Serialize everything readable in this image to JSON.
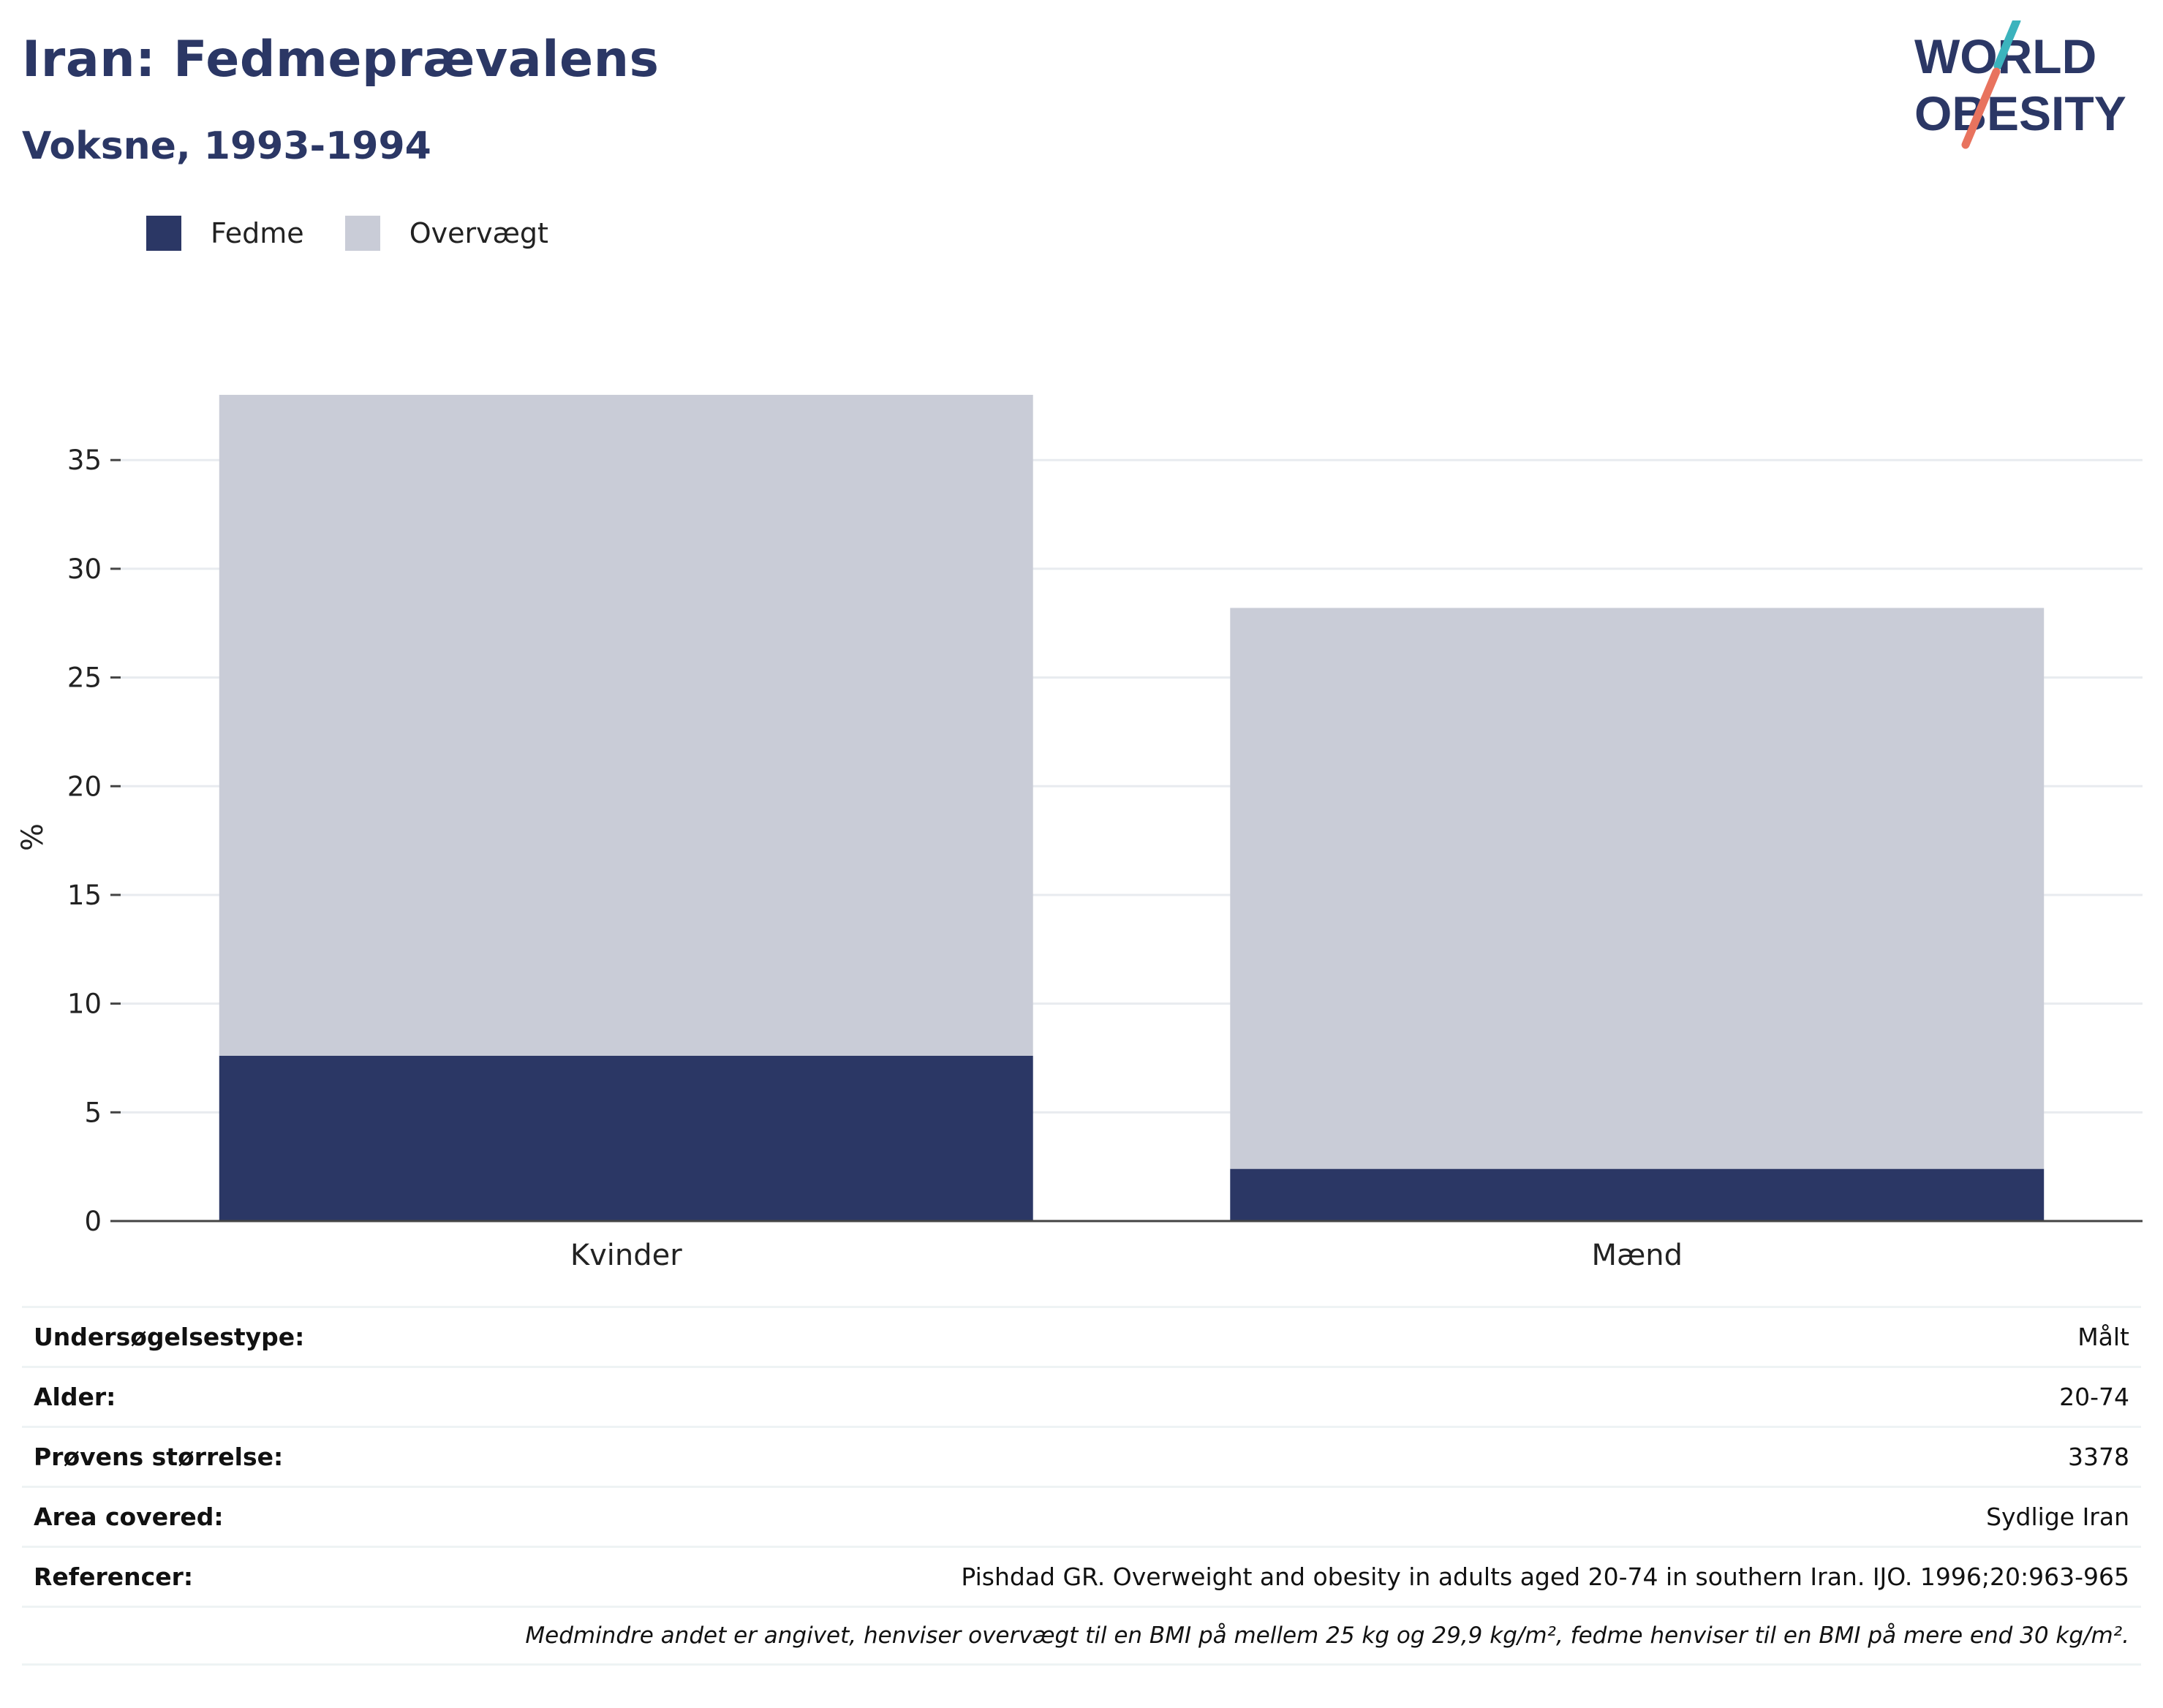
{
  "header": {
    "title": "Iran: Fedmeprævalens",
    "subtitle": "Voksne, 1993-1994"
  },
  "logo": {
    "line1": "WORLD",
    "line2": "OBESITY",
    "text_color": "#2b3765",
    "slash_top_color": "#3bb3bd",
    "slash_bottom_color": "#e8735e"
  },
  "colors": {
    "fedme": "#2b3765",
    "overvaegt": "#c9ccd7",
    "grid": "#e8ebef",
    "axis": "#444444"
  },
  "chart_data": {
    "type": "bar",
    "stacked": true,
    "categories": [
      "Kvinder",
      "Mænd"
    ],
    "series": [
      {
        "name": "Fedme",
        "values": [
          7.6,
          2.4
        ]
      },
      {
        "name": "Overvægt",
        "values": [
          30.4,
          25.8
        ]
      }
    ],
    "ylabel": "%",
    "xlabel": "",
    "ylim": [
      0,
      38
    ],
    "yticks": [
      0,
      5,
      10,
      15,
      20,
      25,
      30,
      35
    ],
    "grid": true,
    "legend_position": "top-left"
  },
  "meta": {
    "rows": [
      {
        "label": "Undersøgelsestype:",
        "value": "Målt"
      },
      {
        "label": "Alder:",
        "value": "20-74"
      },
      {
        "label": "Prøvens størrelse:",
        "value": "3378"
      },
      {
        "label": "Area covered:",
        "value": "Sydlige Iran"
      },
      {
        "label": "Referencer:",
        "value": "Pishdad GR. Overweight and obesity in adults aged 20-74 in southern Iran. IJO. 1996;20:963-965"
      }
    ],
    "note": "Medmindre andet er angivet, henviser overvægt til en BMI på mellem 25 kg og 29,9 kg/m², fedme henviser til en BMI på mere end 30 kg/m²."
  }
}
